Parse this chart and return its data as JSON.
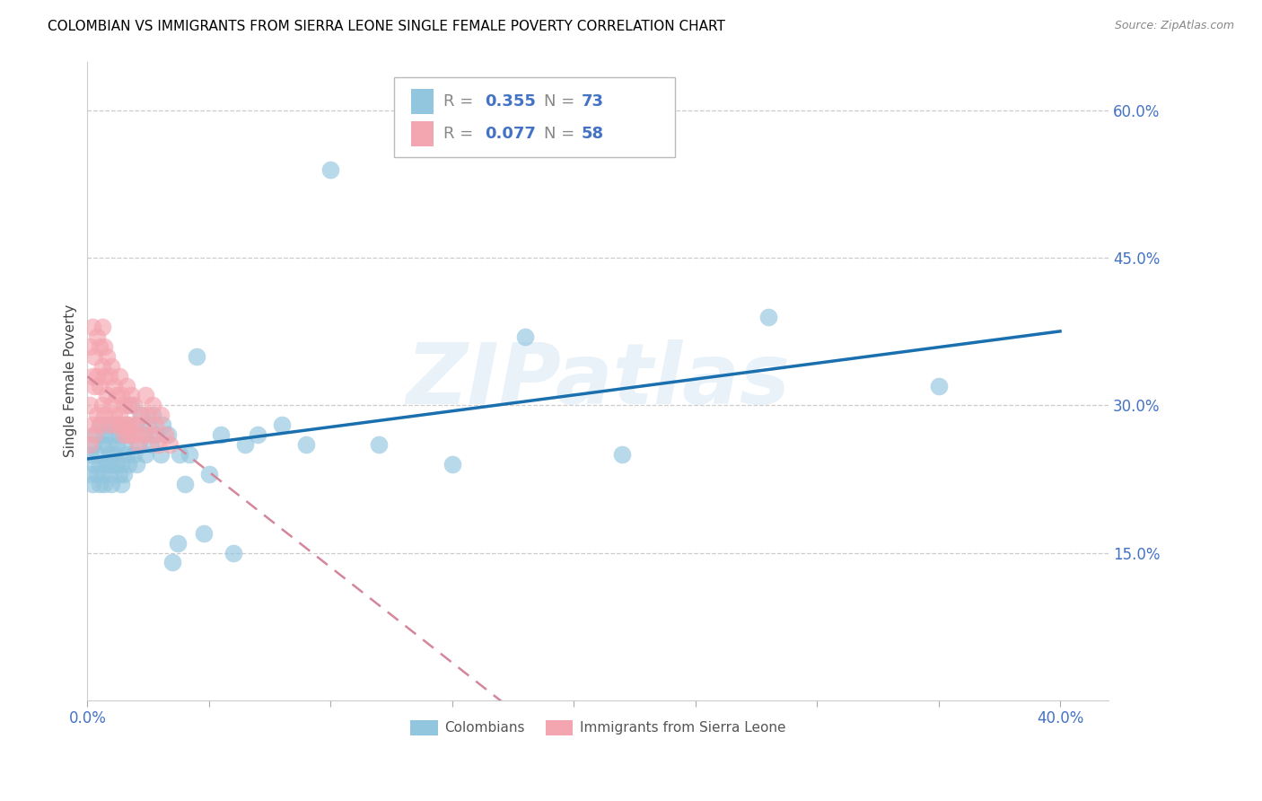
{
  "title": "COLOMBIAN VS IMMIGRANTS FROM SIERRA LEONE SINGLE FEMALE POVERTY CORRELATION CHART",
  "source": "Source: ZipAtlas.com",
  "ylabel": "Single Female Poverty",
  "xlim": [
    0.0,
    0.42
  ],
  "ylim": [
    0.0,
    0.65
  ],
  "xtick_positions": [
    0.0,
    0.05,
    0.1,
    0.15,
    0.2,
    0.25,
    0.3,
    0.35,
    0.4
  ],
  "ytick_positions": [
    0.15,
    0.3,
    0.45,
    0.6
  ],
  "ytick_labels": [
    "15.0%",
    "30.0%",
    "45.0%",
    "60.0%"
  ],
  "legend_R1": "0.355",
  "legend_N1": "73",
  "legend_R2": "0.077",
  "legend_N2": "58",
  "legend_label1": "Colombians",
  "legend_label2": "Immigrants from Sierra Leone",
  "color_blue": "#92c5de",
  "color_pink": "#f4a6b0",
  "color_blue_line": "#1a6faf",
  "color_pink_line": "#d4869a",
  "color_axis": "#4472c4",
  "watermark_text": "ZIPatlas",
  "colombia_x": [
    0.001,
    0.001,
    0.002,
    0.002,
    0.003,
    0.003,
    0.004,
    0.004,
    0.005,
    0.005,
    0.005,
    0.006,
    0.006,
    0.007,
    0.007,
    0.008,
    0.008,
    0.008,
    0.009,
    0.009,
    0.01,
    0.01,
    0.01,
    0.011,
    0.011,
    0.012,
    0.012,
    0.013,
    0.013,
    0.014,
    0.014,
    0.015,
    0.015,
    0.016,
    0.016,
    0.017,
    0.017,
    0.018,
    0.019,
    0.02,
    0.02,
    0.021,
    0.022,
    0.023,
    0.024,
    0.025,
    0.026,
    0.027,
    0.028,
    0.03,
    0.031,
    0.033,
    0.035,
    0.037,
    0.038,
    0.04,
    0.042,
    0.045,
    0.048,
    0.05,
    0.055,
    0.06,
    0.065,
    0.07,
    0.08,
    0.09,
    0.1,
    0.12,
    0.15,
    0.18,
    0.22,
    0.28,
    0.35
  ],
  "colombia_y": [
    0.23,
    0.25,
    0.22,
    0.26,
    0.24,
    0.27,
    0.23,
    0.25,
    0.22,
    0.24,
    0.28,
    0.23,
    0.26,
    0.22,
    0.27,
    0.24,
    0.26,
    0.28,
    0.25,
    0.23,
    0.24,
    0.27,
    0.22,
    0.25,
    0.28,
    0.24,
    0.26,
    0.23,
    0.27,
    0.24,
    0.22,
    0.26,
    0.23,
    0.25,
    0.28,
    0.24,
    0.27,
    0.3,
    0.25,
    0.28,
    0.24,
    0.26,
    0.29,
    0.27,
    0.25,
    0.28,
    0.26,
    0.29,
    0.27,
    0.25,
    0.28,
    0.27,
    0.14,
    0.16,
    0.25,
    0.22,
    0.25,
    0.35,
    0.17,
    0.23,
    0.27,
    0.15,
    0.26,
    0.27,
    0.28,
    0.26,
    0.54,
    0.26,
    0.24,
    0.37,
    0.25,
    0.39,
    0.32
  ],
  "sierra_x": [
    0.001,
    0.001,
    0.001,
    0.002,
    0.002,
    0.002,
    0.003,
    0.003,
    0.003,
    0.004,
    0.004,
    0.004,
    0.005,
    0.005,
    0.005,
    0.006,
    0.006,
    0.006,
    0.007,
    0.007,
    0.007,
    0.008,
    0.008,
    0.009,
    0.009,
    0.01,
    0.01,
    0.011,
    0.011,
    0.012,
    0.012,
    0.013,
    0.013,
    0.014,
    0.014,
    0.015,
    0.015,
    0.016,
    0.016,
    0.017,
    0.017,
    0.018,
    0.018,
    0.019,
    0.019,
    0.02,
    0.021,
    0.022,
    0.023,
    0.024,
    0.025,
    0.026,
    0.027,
    0.028,
    0.029,
    0.03,
    0.032,
    0.034
  ],
  "sierra_y": [
    0.26,
    0.3,
    0.36,
    0.28,
    0.33,
    0.38,
    0.27,
    0.32,
    0.35,
    0.29,
    0.33,
    0.37,
    0.28,
    0.32,
    0.36,
    0.3,
    0.34,
    0.38,
    0.29,
    0.33,
    0.36,
    0.31,
    0.35,
    0.28,
    0.33,
    0.3,
    0.34,
    0.29,
    0.32,
    0.28,
    0.31,
    0.29,
    0.33,
    0.28,
    0.31,
    0.27,
    0.3,
    0.28,
    0.32,
    0.27,
    0.3,
    0.28,
    0.31,
    0.27,
    0.3,
    0.28,
    0.26,
    0.29,
    0.27,
    0.31,
    0.29,
    0.27,
    0.3,
    0.28,
    0.26,
    0.29,
    0.27,
    0.26
  ]
}
